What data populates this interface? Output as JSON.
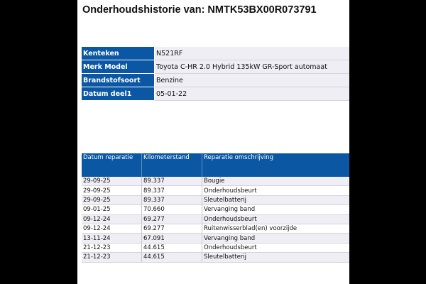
{
  "title": "Onderhoudshistorie van: NMTK53BX00R073791",
  "vehicle": [
    {
      "label": "Kenteken",
      "value": "N521RF"
    },
    {
      "label": "Merk Model",
      "value": "Toyota C-HR 2.0 Hybrid 135kW GR-Sport automaat"
    },
    {
      "label": "Brandstofsoort",
      "value": "Benzine"
    },
    {
      "label": "Datum deel1",
      "value": "05-01-22"
    }
  ],
  "repairs": {
    "headers": [
      "Datum reparatie",
      "Kilometerstand",
      "Reparatie omschrijving"
    ],
    "rows": [
      [
        "29-09-25",
        "89.337",
        "Bougie"
      ],
      [
        "29-09-25",
        "89.337",
        "Onderhoudsbeurt"
      ],
      [
        "29-09-25",
        "89.337",
        "Sleutelbatterij"
      ],
      [
        "09-01-25",
        "70.660",
        "Vervanging band"
      ],
      [
        "09-12-24",
        "69.277",
        "Onderhoudsbeurt"
      ],
      [
        "09-12-24",
        "69.277",
        "Ruitenwisserblad(en) voorzijde"
      ],
      [
        "13-11-24",
        "67.091",
        "Vervanging band"
      ],
      [
        "21-12-23",
        "44.615",
        "Onderhoudsbeurt"
      ],
      [
        "21-12-23",
        "44.615",
        "Sleutelbatterij"
      ]
    ]
  },
  "colors": {
    "header_blue": "#0b57a4",
    "row_alt": "#eeeef4"
  }
}
